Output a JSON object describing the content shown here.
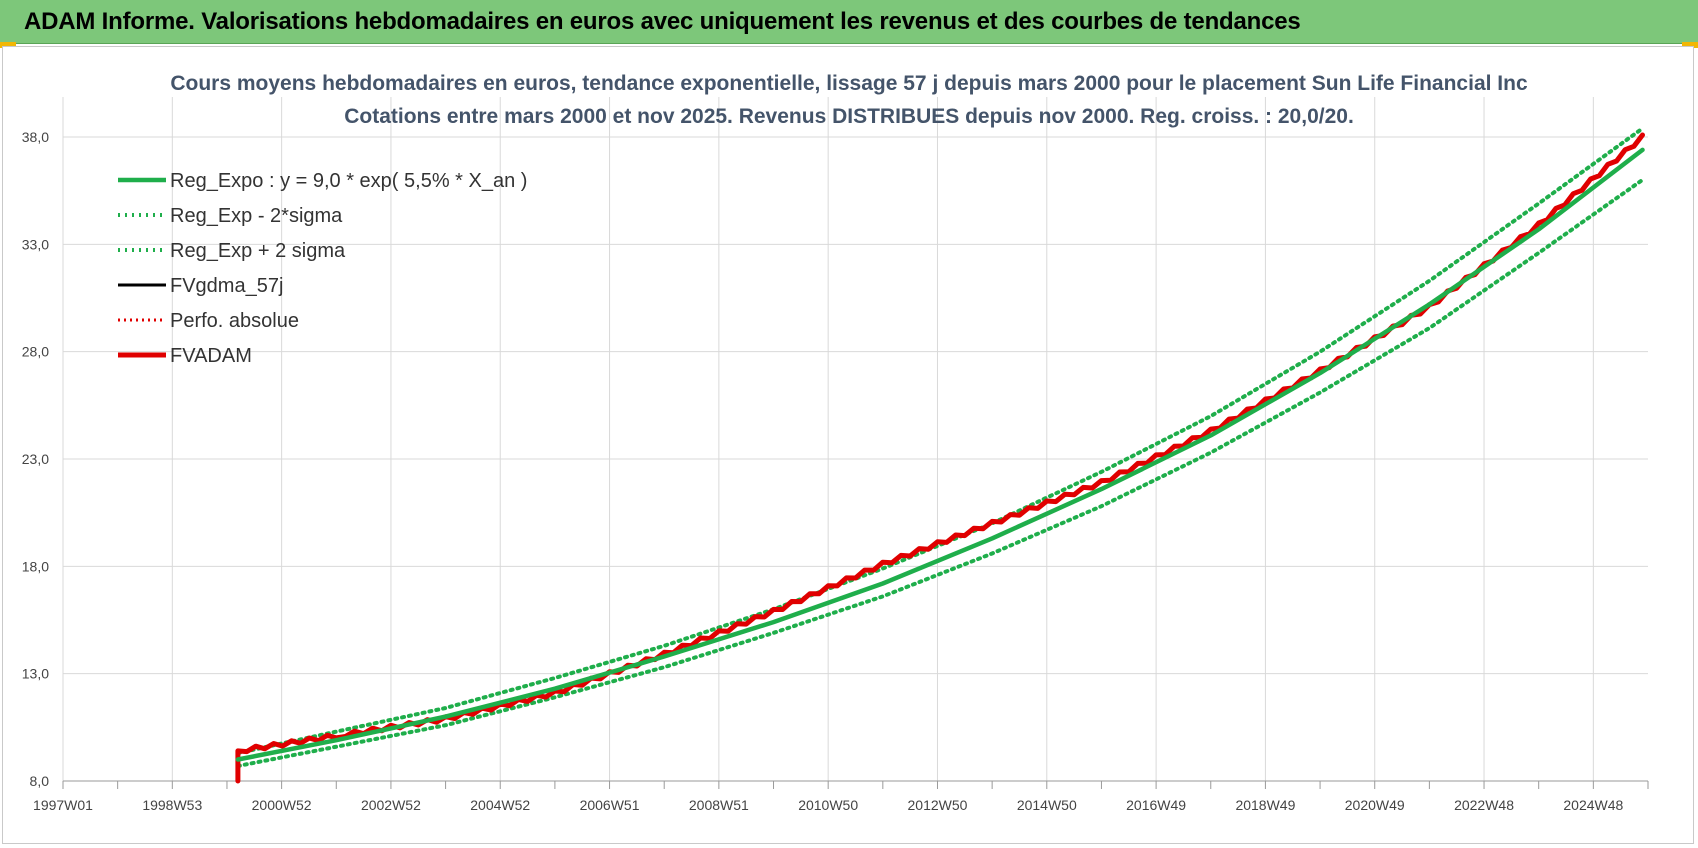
{
  "header": {
    "title": "ADAM Informe. Valorisations hebdomadaires en euros avec uniquement les revenus et des courbes de tendances",
    "accent_color": "#7dc77a"
  },
  "chart_data": {
    "type": "line",
    "title": "Cours moyens hebdomadaires en euros, tendance exponentielle, lissage 57 j depuis mars 2000 pour le placement Sun Life Financial Inc",
    "subtitle": "Cotations entre mars 2000 et nov 2025. Revenus DISTRIBUES depuis nov 2000. Reg. croiss. : 20,0/20.",
    "xlabel": "",
    "ylabel": "",
    "x_ticks": [
      "1997W01",
      "1998W53",
      "2000W52",
      "2002W52",
      "2004W52",
      "2006W51",
      "2008W51",
      "2010W50",
      "2012W50",
      "2014W50",
      "2016W49",
      "2018W49",
      "2020W49",
      "2022W48",
      "2024W48"
    ],
    "x_range": [
      1997.0,
      2026.0
    ],
    "y_ticks": [
      "8,0",
      "13,0",
      "18,0",
      "23,0",
      "28,0",
      "33,0",
      "38,0"
    ],
    "ylim": [
      8,
      38.0
    ],
    "grid": true,
    "legend_position": "top-left",
    "series": [
      {
        "name": "Reg_Expo : y = 9,0 * exp( 5,5% *  X_an )",
        "color": "#1fae4b",
        "style": "solid",
        "x": [
          2000.2,
          2002,
          2004,
          2006,
          2008,
          2010,
          2012,
          2014,
          2016,
          2018,
          2020,
          2022,
          2024,
          2025.9
        ],
        "y": [
          9.0,
          9.9,
          11.0,
          12.3,
          13.8,
          15.4,
          17.2,
          19.3,
          21.6,
          24.1,
          27.0,
          30.2,
          33.7,
          37.4
        ]
      },
      {
        "name": "Reg_Exp - 2*sigma",
        "color": "#1fae4b",
        "style": "dotted",
        "x": [
          2000.2,
          2002,
          2004,
          2006,
          2008,
          2010,
          2012,
          2014,
          2016,
          2018,
          2020,
          2022,
          2024,
          2025.9
        ],
        "y": [
          8.7,
          9.6,
          10.6,
          11.9,
          13.3,
          14.9,
          16.6,
          18.6,
          20.8,
          23.3,
          26.1,
          29.1,
          32.6,
          36.0
        ]
      },
      {
        "name": "Reg_Exp + 2 sigma",
        "color": "#1fae4b",
        "style": "dotted",
        "x": [
          2000.2,
          2002,
          2004,
          2006,
          2008,
          2010,
          2012,
          2014,
          2016,
          2018,
          2020,
          2022,
          2024,
          2025.9
        ],
        "y": [
          9.3,
          10.3,
          11.4,
          12.8,
          14.3,
          16.0,
          17.9,
          20.0,
          22.4,
          25.0,
          28.0,
          31.3,
          34.9,
          38.4
        ]
      },
      {
        "name": "FVgdma_57j",
        "color": "#000000",
        "style": "solid",
        "x": [
          2000.2,
          2002,
          2004,
          2006,
          2008,
          2010,
          2012,
          2014,
          2016,
          2018,
          2020,
          2022,
          2024,
          2025.9
        ],
        "y": [
          9.4,
          10.1,
          10.9,
          12.1,
          13.9,
          15.9,
          18.1,
          20.0,
          21.9,
          24.3,
          27.1,
          30.1,
          33.9,
          38.0
        ]
      },
      {
        "name": "Perfo. absolue",
        "color": "#e00000",
        "style": "dotted",
        "x": [
          2000.2,
          2002,
          2004,
          2006,
          2008,
          2010,
          2012,
          2014,
          2016,
          2018,
          2020,
          2022,
          2024,
          2025.9
        ],
        "y": [
          9.4,
          10.1,
          10.9,
          12.1,
          13.9,
          15.9,
          18.1,
          20.0,
          21.9,
          24.3,
          27.1,
          30.1,
          33.9,
          38.0
        ]
      },
      {
        "name": "FVADAM",
        "color": "#e00000",
        "style": "solid",
        "x": [
          2000.2,
          2000.2,
          2002,
          2004,
          2006,
          2008,
          2010,
          2012,
          2014,
          2016,
          2018,
          2020,
          2022,
          2024,
          2025.9
        ],
        "y": [
          8.0,
          9.4,
          10.1,
          10.9,
          12.1,
          13.9,
          15.9,
          18.1,
          20.0,
          21.9,
          24.3,
          27.1,
          30.1,
          33.9,
          38.0
        ]
      }
    ]
  }
}
